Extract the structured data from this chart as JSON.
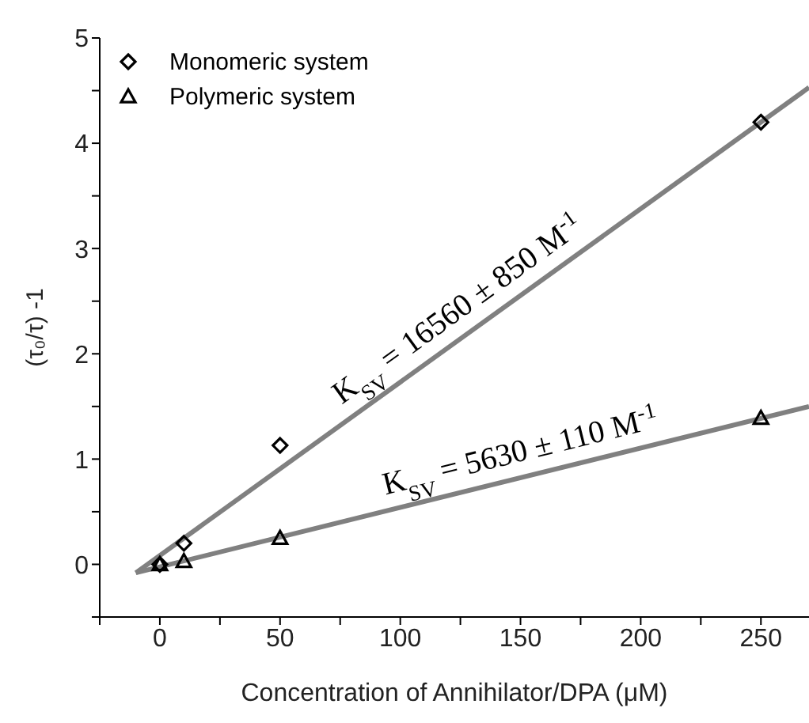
{
  "chart_data": {
    "type": "scatter",
    "xlabel": "Concentration of Annihilator/DPA (μM)",
    "ylabel": "(τ₀/τ) -1",
    "xlim": [
      -25,
      270
    ],
    "ylim": [
      -0.5,
      5
    ],
    "xticks": [
      {
        "value": -25,
        "label": null
      },
      0,
      {
        "value": 25,
        "label": null
      },
      50,
      {
        "value": 75,
        "label": null
      },
      100,
      {
        "value": 125,
        "label": null
      },
      150,
      {
        "value": 175,
        "label": null
      },
      200,
      {
        "value": 225,
        "label": null
      },
      250
    ],
    "yticks": [
      {
        "value": -0.5,
        "label": null
      },
      0,
      {
        "value": 0.5,
        "label": null
      },
      1,
      {
        "value": 1.5,
        "label": null
      },
      2,
      {
        "value": 2.5,
        "label": null
      },
      3,
      {
        "value": 3.5,
        "label": null
      },
      4,
      {
        "value": 4.5,
        "label": null
      },
      5
    ],
    "legend": "top left",
    "grid": false,
    "series": [
      {
        "type": "line",
        "x": [
          -10,
          270
        ],
        "values": [
          -0.08,
          4.53
        ],
        "color": "#808080",
        "marker": "none"
      },
      {
        "type": "line",
        "x": [
          -10,
          270
        ],
        "values": [
          -0.08,
          1.5
        ],
        "color": "#808080",
        "marker": "none"
      },
      {
        "name": "Monomeric system",
        "x": [
          0,
          10,
          50,
          250
        ],
        "values": [
          0,
          0.2,
          1.13,
          4.2
        ],
        "color": "#000000",
        "marker": "diamond"
      },
      {
        "name": "Polymeric system",
        "x": [
          0,
          10,
          50,
          250
        ],
        "values": [
          0,
          0.03,
          0.25,
          1.39
        ],
        "color": "#000000",
        "marker": "triangle"
      }
    ],
    "annotations": [
      "K$_{SV}$ = 16560 ± 850 M$^{-1}$",
      "K$_{SV}$ = 5630 ± 110 M$^{-1}$"
    ]
  }
}
